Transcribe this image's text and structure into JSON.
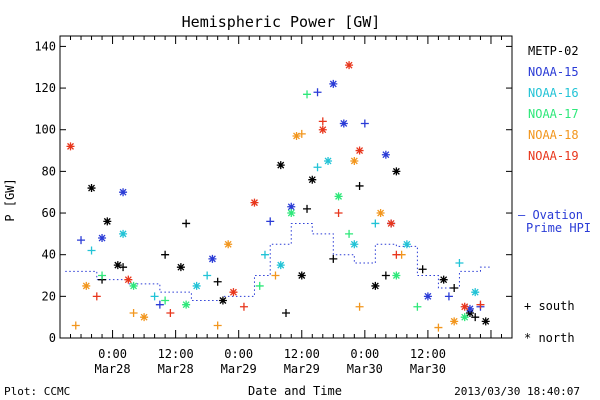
{
  "chart_data": {
    "type": "scatter",
    "title": "Hemispheric Power [GW]",
    "ylabel": "P [GW]",
    "xlabel": "Date and Time",
    "ylim": [
      0,
      145
    ],
    "xlim": [
      "2013-03-27T14:00",
      "2013-03-31T04:00"
    ],
    "yticks": [
      "0",
      "20",
      "40",
      "60",
      "80",
      "100",
      "120",
      "140"
    ],
    "xticks": [
      {
        "x": "2013-03-28T00:00",
        "line1": "0:00",
        "line2": "Mar28"
      },
      {
        "x": "2013-03-28T12:00",
        "line1": "12:00",
        "line2": "Mar28"
      },
      {
        "x": "2013-03-29T00:00",
        "line1": "0:00",
        "line2": "Mar29"
      },
      {
        "x": "2013-03-29T12:00",
        "line1": "12:00",
        "line2": "Mar29"
      },
      {
        "x": "2013-03-30T00:00",
        "line1": "0:00",
        "line2": "Mar30"
      },
      {
        "x": "2013-03-30T12:00",
        "line1": "12:00",
        "line2": "Mar30"
      }
    ],
    "plot_label": "Plot: CCMC",
    "timestamp": "2013/03/30 18:40:07",
    "markers": {
      "south_label": "south",
      "north_label": "north",
      "south_symbol": "+",
      "north_symbol": "*"
    },
    "series": [
      {
        "name": "METP-02",
        "color": "#000000",
        "south": [
          [
            "2013-03-27T22:00",
            28
          ],
          [
            "2013-03-28T02:00",
            34
          ],
          [
            "2013-03-28T10:00",
            40
          ],
          [
            "2013-03-28T14:00",
            55
          ],
          [
            "2013-03-28T20:00",
            27
          ],
          [
            "2013-03-29T09:00",
            12
          ],
          [
            "2013-03-29T13:00",
            62
          ],
          [
            "2013-03-29T18:00",
            38
          ],
          [
            "2013-03-29T23:00",
            73
          ],
          [
            "2013-03-30T04:00",
            30
          ],
          [
            "2013-03-30T11:00",
            33
          ],
          [
            "2013-03-30T17:00",
            24
          ],
          [
            "2013-03-30T21:00",
            10
          ]
        ],
        "north": [
          [
            "2013-03-27T20:00",
            72
          ],
          [
            "2013-03-27T23:00",
            56
          ],
          [
            "2013-03-28T01:00",
            35
          ],
          [
            "2013-03-28T13:00",
            34
          ],
          [
            "2013-03-28T21:00",
            18
          ],
          [
            "2013-03-29T08:00",
            83
          ],
          [
            "2013-03-29T12:00",
            30
          ],
          [
            "2013-03-29T14:00",
            76
          ],
          [
            "2013-03-30T02:00",
            25
          ],
          [
            "2013-03-30T06:00",
            80
          ],
          [
            "2013-03-30T15:00",
            28
          ],
          [
            "2013-03-30T20:00",
            12
          ],
          [
            "2013-03-30T23:00",
            8
          ]
        ]
      },
      {
        "name": "NOAA-15",
        "color": "#2a3bd6",
        "south": [
          [
            "2013-03-27T18:00",
            47
          ],
          [
            "2013-03-28T09:00",
            16
          ],
          [
            "2013-03-29T06:00",
            56
          ],
          [
            "2013-03-29T15:00",
            118
          ],
          [
            "2013-03-30T00:00",
            103
          ],
          [
            "2013-03-30T05:00",
            55
          ],
          [
            "2013-03-30T16:00",
            20
          ],
          [
            "2013-03-30T22:00",
            15
          ]
        ],
        "north": [
          [
            "2013-03-27T22:00",
            48
          ],
          [
            "2013-03-28T02:00",
            70
          ],
          [
            "2013-03-28T19:00",
            38
          ],
          [
            "2013-03-29T10:00",
            63
          ],
          [
            "2013-03-29T18:00",
            122
          ],
          [
            "2013-03-29T20:00",
            103
          ],
          [
            "2013-03-30T04:00",
            88
          ],
          [
            "2013-03-30T12:00",
            20
          ],
          [
            "2013-03-30T20:00",
            14
          ]
        ]
      },
      {
        "name": "NOAA-16",
        "color": "#22c3d6",
        "south": [
          [
            "2013-03-27T20:00",
            42
          ],
          [
            "2013-03-28T08:00",
            20
          ],
          [
            "2013-03-28T18:00",
            30
          ],
          [
            "2013-03-29T05:00",
            40
          ],
          [
            "2013-03-29T15:00",
            82
          ],
          [
            "2013-03-30T02:00",
            55
          ],
          [
            "2013-03-30T18:00",
            36
          ]
        ],
        "north": [
          [
            "2013-03-28T02:00",
            50
          ],
          [
            "2013-03-28T16:00",
            25
          ],
          [
            "2013-03-29T08:00",
            35
          ],
          [
            "2013-03-29T17:00",
            85
          ],
          [
            "2013-03-29T22:00",
            45
          ],
          [
            "2013-03-30T08:00",
            45
          ],
          [
            "2013-03-30T21:00",
            22
          ]
        ]
      },
      {
        "name": "NOAA-17",
        "color": "#2ee87a",
        "south": [
          [
            "2013-03-27T22:00",
            30
          ],
          [
            "2013-03-28T10:00",
            18
          ],
          [
            "2013-03-29T04:00",
            25
          ],
          [
            "2013-03-29T13:00",
            117
          ],
          [
            "2013-03-29T21:00",
            50
          ],
          [
            "2013-03-30T10:00",
            15
          ]
        ],
        "north": [
          [
            "2013-03-28T04:00",
            25
          ],
          [
            "2013-03-28T14:00",
            16
          ],
          [
            "2013-03-29T10:00",
            60
          ],
          [
            "2013-03-29T19:00",
            68
          ],
          [
            "2013-03-30T06:00",
            30
          ],
          [
            "2013-03-30T19:00",
            10
          ]
        ]
      },
      {
        "name": "NOAA-18",
        "color": "#f2961d",
        "south": [
          [
            "2013-03-27T17:00",
            6
          ],
          [
            "2013-03-28T04:00",
            12
          ],
          [
            "2013-03-28T20:00",
            6
          ],
          [
            "2013-03-29T07:00",
            30
          ],
          [
            "2013-03-29T12:00",
            98
          ],
          [
            "2013-03-29T23:00",
            15
          ],
          [
            "2013-03-30T07:00",
            40
          ],
          [
            "2013-03-30T14:00",
            5
          ]
        ],
        "north": [
          [
            "2013-03-27T19:00",
            25
          ],
          [
            "2013-03-28T06:00",
            10
          ],
          [
            "2013-03-28T22:00",
            45
          ],
          [
            "2013-03-29T11:00",
            97
          ],
          [
            "2013-03-29T22:00",
            85
          ],
          [
            "2013-03-30T03:00",
            60
          ],
          [
            "2013-03-30T17:00",
            8
          ]
        ]
      },
      {
        "name": "NOAA-19",
        "color": "#e8361c",
        "south": [
          [
            "2013-03-27T21:00",
            20
          ],
          [
            "2013-03-28T11:00",
            12
          ],
          [
            "2013-03-29T01:00",
            15
          ],
          [
            "2013-03-29T16:00",
            104
          ],
          [
            "2013-03-29T19:00",
            60
          ],
          [
            "2013-03-30T06:00",
            40
          ],
          [
            "2013-03-30T22:00",
            16
          ]
        ],
        "north": [
          [
            "2013-03-27T16:00",
            92
          ],
          [
            "2013-03-28T03:00",
            28
          ],
          [
            "2013-03-28T23:00",
            22
          ],
          [
            "2013-03-29T03:00",
            65
          ],
          [
            "2013-03-29T16:00",
            100
          ],
          [
            "2013-03-29T21:00",
            131
          ],
          [
            "2013-03-29T23:00",
            90
          ],
          [
            "2013-03-30T05:00",
            55
          ],
          [
            "2013-03-30T19:00",
            15
          ]
        ]
      }
    ],
    "ovation": {
      "name": "Ovation Prime HPI",
      "legend_symbol": "—",
      "legend_line1": "Ovation",
      "legend_line2": "Prime HPI",
      "color": "#2a3bd6",
      "values": [
        [
          "2013-03-27T15:00",
          32
        ],
        [
          "2013-03-27T21:00",
          28
        ],
        [
          "2013-03-28T03:00",
          26
        ],
        [
          "2013-03-28T09:00",
          22
        ],
        [
          "2013-03-28T15:00",
          18
        ],
        [
          "2013-03-28T21:00",
          20
        ],
        [
          "2013-03-29T03:00",
          30
        ],
        [
          "2013-03-29T06:00",
          45
        ],
        [
          "2013-03-29T10:00",
          55
        ],
        [
          "2013-03-29T14:00",
          50
        ],
        [
          "2013-03-29T18:00",
          40
        ],
        [
          "2013-03-29T22:00",
          36
        ],
        [
          "2013-03-30T02:00",
          45
        ],
        [
          "2013-03-30T06:00",
          44
        ],
        [
          "2013-03-30T10:00",
          30
        ],
        [
          "2013-03-30T14:00",
          24
        ],
        [
          "2013-03-30T18:00",
          32
        ],
        [
          "2013-03-30T22:00",
          34
        ]
      ]
    }
  }
}
